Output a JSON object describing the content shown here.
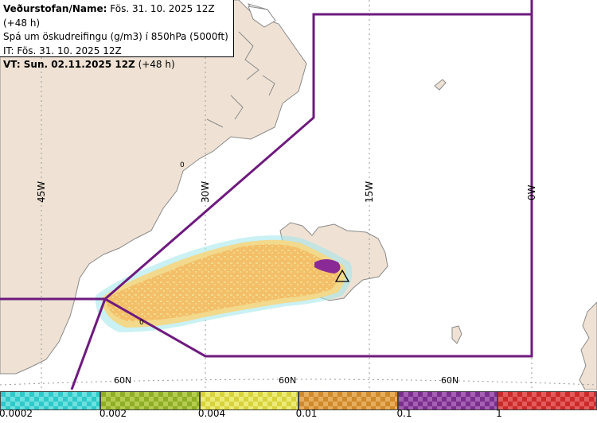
{
  "info": {
    "line1_label": "Veðurstofan/Name:",
    "line1_value": " Fös. 31. 10. 2025 12Z (+48 h)",
    "line2": "Spá um öskudreifingu (g/m3) í 850hPa (5000ft)",
    "line3": "IT: Fös. 31. 10. 2025 12Z",
    "line4_label": "VT: Sun. 02.11.2025 12Z",
    "line4_value": " (+48 h)"
  },
  "map": {
    "lon_labels": [
      "45W",
      "30W",
      "15W",
      "0W"
    ],
    "lat_labels": [
      "60N",
      "60N",
      "60N"
    ],
    "contour_labels": [
      "0",
      "0"
    ],
    "colors": {
      "sea": "#ffffff",
      "land": "#efe2d4",
      "coast": "#8a8a8a",
      "grid": "#9a9a9a",
      "fir_boundary": "#6e1a7e",
      "ash_light": "#f2d98c",
      "ash_orange": "#f3a94a",
      "ash_purple": "#8a2a96",
      "ash_cyan": "#9fe6ea"
    }
  },
  "legend": {
    "bins": [
      {
        "color": "#2ec9c9",
        "color2": "#6ee0e0"
      },
      {
        "color": "#8fae27",
        "color2": "#b4cc50"
      },
      {
        "color": "#d8d33b",
        "color2": "#eceb78"
      },
      {
        "color": "#cf8a2b",
        "color2": "#e6ad5d"
      },
      {
        "color": "#7b2f8d",
        "color2": "#a460b2"
      },
      {
        "color": "#cc2a2a",
        "color2": "#e25c5c"
      }
    ],
    "tick_labels": [
      "0.0002",
      "0.002",
      "0.004",
      "0.01",
      "0.1",
      "1"
    ]
  }
}
